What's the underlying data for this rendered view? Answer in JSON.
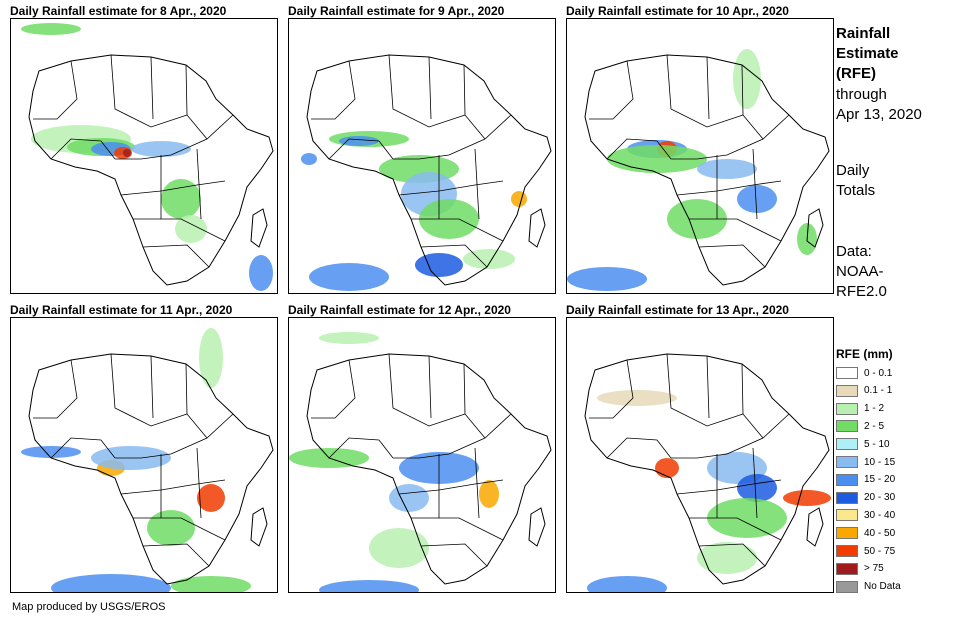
{
  "panels": [
    {
      "title": "Daily Rainfall estimate for 8 Apr., 2020"
    },
    {
      "title": "Daily Rainfall estimate for 9 Apr., 2020"
    },
    {
      "title": "Daily Rainfall estimate for 10 Apr., 2020"
    },
    {
      "title": "Daily Rainfall estimate for 11 Apr., 2020"
    },
    {
      "title": "Daily Rainfall estimate for 12 Apr., 2020"
    },
    {
      "title": "Daily Rainfall estimate for 13 Apr., 2020"
    }
  ],
  "sidebar": {
    "title_line1": "Rainfall",
    "title_line2": "Estimate",
    "title_line3": "(RFE)",
    "through_line1": "through",
    "through_line2": "Apr 13, 2020",
    "totals_line1": "Daily",
    "totals_line2": "Totals",
    "data_line1": "Data:",
    "data_line2": "NOAA-",
    "data_line3": "RFE2.0"
  },
  "legend": {
    "title": "RFE (mm)",
    "items": [
      {
        "label": "0 - 0.1",
        "color": "#ffffff"
      },
      {
        "label": "0.1 - 1",
        "color": "#e8d9b8"
      },
      {
        "label": "1 - 2",
        "color": "#b8f0b0"
      },
      {
        "label": "2 - 5",
        "color": "#70dc64"
      },
      {
        "label": "5 - 10",
        "color": "#aef0f8"
      },
      {
        "label": "10 - 15",
        "color": "#88bbf0"
      },
      {
        "label": "15 - 20",
        "color": "#4c8ef0"
      },
      {
        "label": "20 - 30",
        "color": "#1c5ce0"
      },
      {
        "label": "30 - 40",
        "color": "#fce88c"
      },
      {
        "label": "40 - 50",
        "color": "#f8a800"
      },
      {
        "label": "50 - 75",
        "color": "#f03c00"
      },
      {
        "label": "> 75",
        "color": "#a01c1c"
      },
      {
        "label": "No Data",
        "color": "#999999"
      }
    ]
  },
  "credit": "Map produced by USGS/EROS"
}
